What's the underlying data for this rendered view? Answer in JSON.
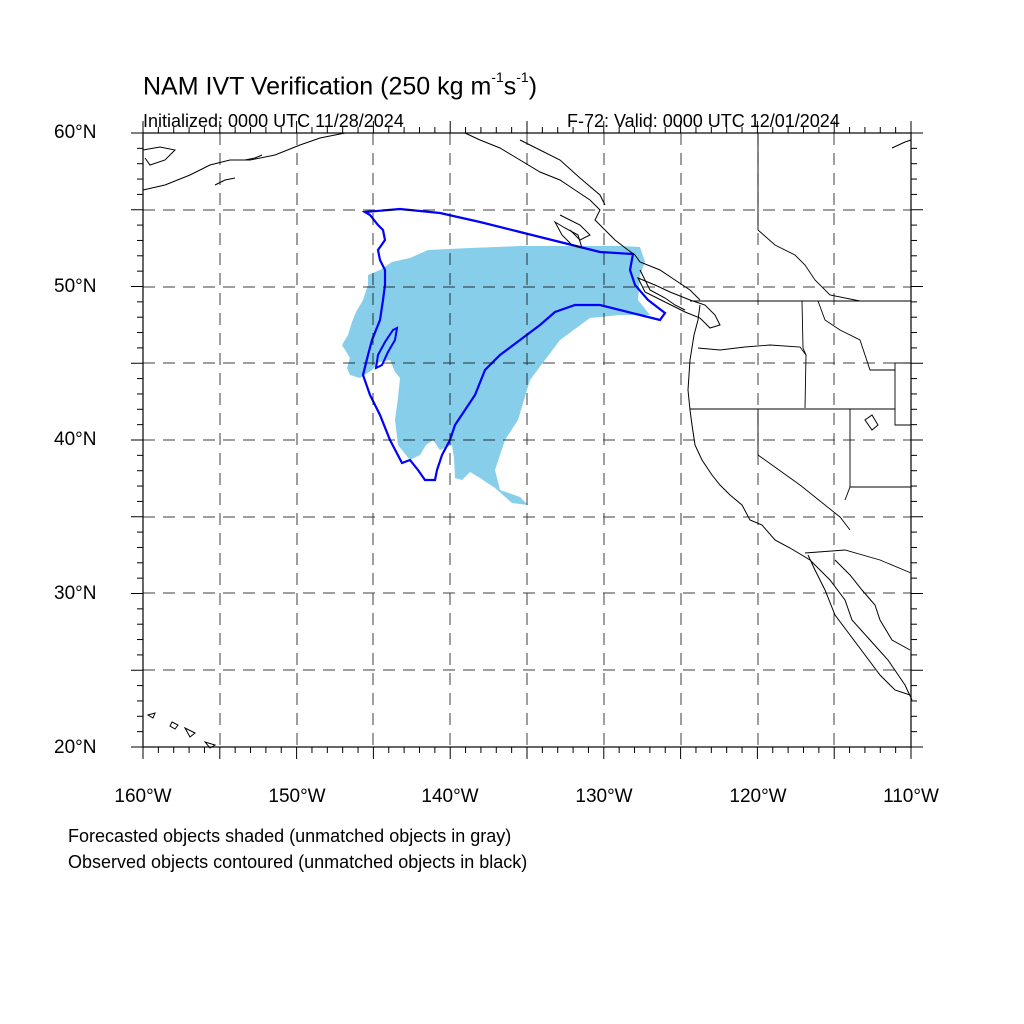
{
  "title": {
    "main": "NAM IVT Verification (250 kg m",
    "sup1": "-1",
    "mid": "s",
    "sup2": "-1",
    "end": ")"
  },
  "initialized": "Initialized: 0000 UTC 11/28/2024",
  "valid": "F-72: Valid: 0000 UTC 12/01/2024",
  "lat_labels": [
    "60°N",
    "50°N",
    "40°N",
    "30°N",
    "20°N"
  ],
  "lon_labels": [
    "160°W",
    "150°W",
    "140°W",
    "130°W",
    "120°W",
    "110°W"
  ],
  "notes": [
    "Forecasted objects shaded (unmatched objects in gray)",
    "Observed objects contoured (unmatched objects in black)"
  ],
  "colors": {
    "forecast_fill": "#87CEEB",
    "observed_contour": "#0000FF",
    "coastline": "#000000",
    "grid": "#000000"
  },
  "map_extent": {
    "lon": [
      -160,
      -110
    ],
    "lat": [
      20,
      60
    ]
  }
}
